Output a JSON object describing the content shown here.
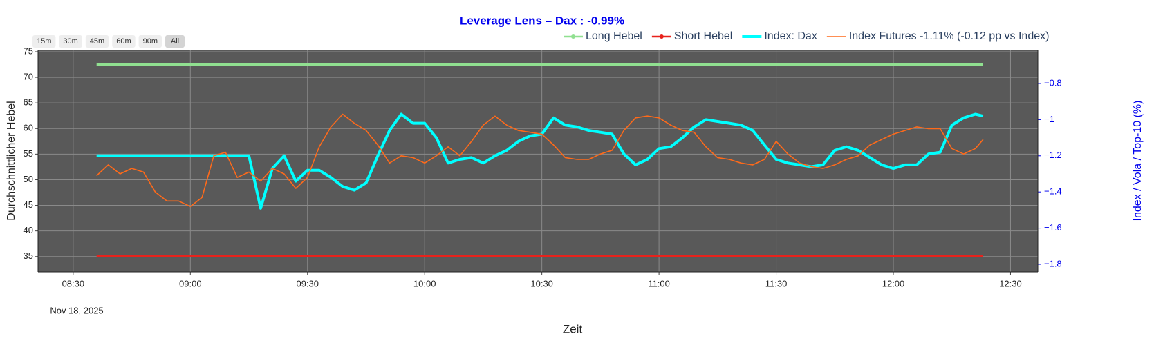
{
  "chart_data": {
    "type": "line",
    "title": "Leverage Lens – Dax : -0.99%",
    "range_buttons": [
      "15m",
      "30m",
      "45m",
      "60m",
      "90m",
      "All"
    ],
    "x_label": "Zeit",
    "y_label": "Durchschnittlicher Hebel",
    "y2_label": "Index / Vola / Top-10 (%)",
    "x_date_label": "Nov 18, 2025",
    "xlim": [
      "08:21",
      "12:37"
    ],
    "xticks": [
      "08:30",
      "09:00",
      "09:30",
      "10:00",
      "10:30",
      "11:00",
      "11:30",
      "12:00",
      "12:30"
    ],
    "ylim": [
      32,
      75.4
    ],
    "yticks": [
      35,
      40,
      45,
      50,
      55,
      60,
      65,
      70,
      75
    ],
    "y2lim": [
      -1.842,
      -0.613
    ],
    "y2ticks": [
      {
        "value": -1.8,
        "label": "−1.8"
      },
      {
        "value": -1.6,
        "label": "−1.6"
      },
      {
        "value": -1.4,
        "label": "−1.4"
      },
      {
        "value": -1.2,
        "label": "−1.2"
      },
      {
        "value": -1,
        "label": "−1"
      },
      {
        "value": -0.8,
        "label": "−0.8"
      }
    ],
    "grid": true,
    "legend_position": "top-right",
    "x": [
      "08:36",
      "08:39",
      "08:42",
      "08:45",
      "08:48",
      "08:51",
      "08:54",
      "08:57",
      "09:00",
      "09:03",
      "09:06",
      "09:09",
      "09:12",
      "09:15",
      "09:18",
      "09:21",
      "09:24",
      "09:27",
      "09:30",
      "09:33",
      "09:36",
      "09:39",
      "09:42",
      "09:45",
      "09:48",
      "09:51",
      "09:54",
      "09:57",
      "10:00",
      "10:03",
      "10:06",
      "10:09",
      "10:12",
      "10:15",
      "10:18",
      "10:21",
      "10:24",
      "10:27",
      "10:30",
      "10:33",
      "10:36",
      "10:39",
      "10:42",
      "10:45",
      "10:48",
      "10:51",
      "10:54",
      "10:57",
      "11:00",
      "11:03",
      "11:06",
      "11:09",
      "11:12",
      "11:15",
      "11:18",
      "11:21",
      "11:24",
      "11:27",
      "11:30",
      "11:33",
      "11:36",
      "11:39",
      "11:42",
      "11:45",
      "11:48",
      "11:51",
      "11:54",
      "11:57",
      "12:00",
      "12:03",
      "12:06",
      "12:09",
      "12:12",
      "12:15",
      "12:18",
      "12:21",
      "12:23"
    ],
    "series": [
      {
        "name": "Long Hebel",
        "color": "#90e090",
        "markers": true,
        "values": [
          72.5,
          72.5,
          72.5,
          72.5,
          72.5,
          72.5,
          72.5,
          72.5,
          72.5,
          72.5,
          72.5,
          72.5,
          72.5,
          72.5,
          72.5,
          72.5,
          72.5,
          72.5,
          72.5,
          72.5,
          72.5,
          72.5,
          72.5,
          72.5,
          72.5,
          72.5,
          72.5,
          72.5,
          72.5,
          72.5,
          72.5,
          72.5,
          72.5,
          72.5,
          72.5,
          72.5,
          72.5,
          72.5,
          72.5,
          72.5,
          72.5,
          72.5,
          72.5,
          72.5,
          72.5,
          72.5,
          72.5,
          72.5,
          72.5,
          72.5,
          72.5,
          72.5,
          72.5,
          72.5,
          72.5,
          72.5,
          72.5,
          72.5,
          72.5,
          72.5,
          72.5,
          72.5,
          72.5,
          72.5,
          72.5,
          72.5,
          72.5,
          72.5,
          72.5,
          72.5,
          72.5,
          72.5,
          72.5,
          72.5,
          72.5,
          72.5,
          72.5
        ]
      },
      {
        "name": "Short Hebel",
        "color": "#e8221c",
        "markers": true,
        "values": [
          35.1,
          35.1,
          35.1,
          35.1,
          35.1,
          35.1,
          35.1,
          35.1,
          35.1,
          35.1,
          35.1,
          35.1,
          35.1,
          35.1,
          35.1,
          35.1,
          35.1,
          35.1,
          35.1,
          35.1,
          35.1,
          35.1,
          35.1,
          35.1,
          35.1,
          35.1,
          35.1,
          35.1,
          35.1,
          35.1,
          35.1,
          35.1,
          35.1,
          35.1,
          35.1,
          35.1,
          35.1,
          35.1,
          35.1,
          35.1,
          35.1,
          35.1,
          35.1,
          35.1,
          35.1,
          35.1,
          35.1,
          35.1,
          35.1,
          35.1,
          35.1,
          35.1,
          35.1,
          35.1,
          35.1,
          35.1,
          35.1,
          35.1,
          35.1,
          35.1,
          35.1,
          35.1,
          35.1,
          35.1,
          35.1,
          35.1,
          35.1,
          35.1,
          35.1,
          35.1,
          35.1,
          35.1,
          35.1,
          35.1,
          35.1,
          35.1,
          35.1
        ]
      },
      {
        "name": "Index: Dax",
        "color": "#00ffff",
        "axis": "y2",
        "width": 4,
        "values": [
          -1.2,
          -1.2,
          -1.2,
          -1.2,
          -1.2,
          -1.2,
          -1.2,
          -1.2,
          -1.2,
          -1.2,
          -1.2,
          -1.2,
          -1.2,
          -1.2,
          -1.49,
          -1.27,
          -1.2,
          -1.34,
          -1.28,
          -1.28,
          -1.32,
          -1.37,
          -1.39,
          -1.35,
          -1.2,
          -1.06,
          -0.97,
          -1.02,
          -1.02,
          -1.1,
          -1.24,
          -1.22,
          -1.21,
          -1.24,
          -1.2,
          -1.17,
          -1.12,
          -1.09,
          -1.08,
          -0.99,
          -1.03,
          -1.04,
          -1.06,
          -1.07,
          -1.08,
          -1.19,
          -1.25,
          -1.22,
          -1.16,
          -1.15,
          -1.1,
          -1.04,
          -1.0,
          -1.01,
          -1.02,
          -1.03,
          -1.06,
          -1.14,
          -1.22,
          -1.24,
          -1.25,
          -1.26,
          -1.25,
          -1.17,
          -1.15,
          -1.17,
          -1.21,
          -1.25,
          -1.27,
          -1.25,
          -1.25,
          -1.19,
          -1.18,
          -1.03,
          -0.99,
          -0.97,
          -0.98
        ]
      },
      {
        "name": "Index Futures -1.11% (-0.12 pp vs Index)",
        "color": "#ff6a1a",
        "axis": "y2",
        "width": 1.6,
        "values": [
          -1.31,
          -1.25,
          -1.3,
          -1.27,
          -1.29,
          -1.4,
          -1.45,
          -1.45,
          -1.48,
          -1.43,
          -1.2,
          -1.18,
          -1.32,
          -1.29,
          -1.34,
          -1.27,
          -1.3,
          -1.38,
          -1.32,
          -1.15,
          -1.04,
          -0.97,
          -1.02,
          -1.06,
          -1.14,
          -1.24,
          -1.2,
          -1.21,
          -1.24,
          -1.2,
          -1.15,
          -1.2,
          -1.12,
          -1.03,
          -0.98,
          -1.03,
          -1.06,
          -1.07,
          -1.08,
          -1.14,
          -1.21,
          -1.22,
          -1.22,
          -1.19,
          -1.17,
          -1.06,
          -0.99,
          -0.98,
          -0.99,
          -1.03,
          -1.06,
          -1.07,
          -1.15,
          -1.21,
          -1.22,
          -1.24,
          -1.25,
          -1.22,
          -1.12,
          -1.19,
          -1.24,
          -1.26,
          -1.27,
          -1.25,
          -1.22,
          -1.2,
          -1.14,
          -1.11,
          -1.08,
          -1.06,
          -1.04,
          -1.05,
          -1.05,
          -1.16,
          -1.19,
          -1.16,
          -1.11
        ]
      }
    ]
  }
}
